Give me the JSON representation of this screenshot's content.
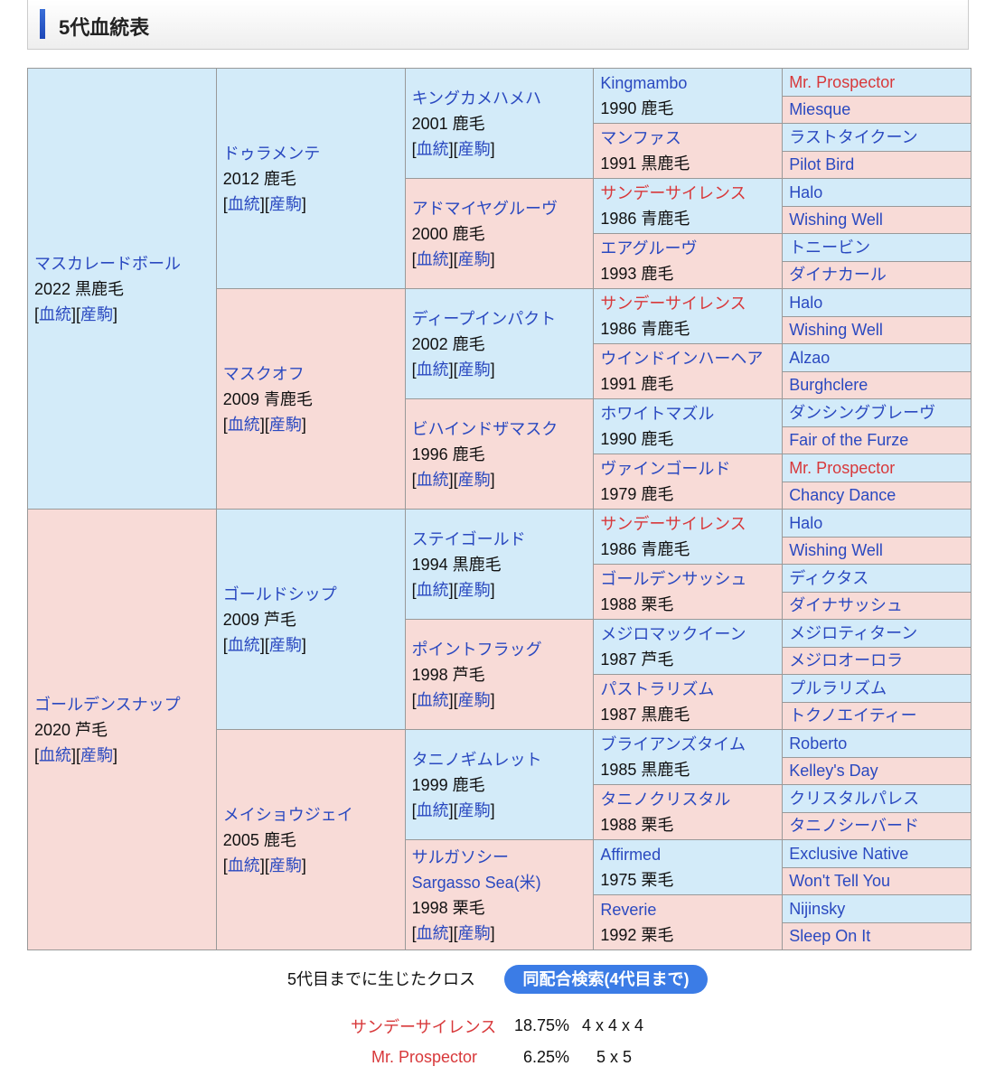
{
  "title": "5代血統表",
  "link_pedigree": "血統",
  "link_offspring": "産駒",
  "colors": {
    "sire_bg": "#d3ebf9",
    "dam_bg": "#f8dbd7",
    "link": "#2a49c0",
    "cross": "#d8383a",
    "button": "#3b7ce6"
  },
  "pedigree": {
    "gen1": [
      {
        "name": "マスカレードボール",
        "info": "2022 黒鹿毛"
      },
      {
        "name": "ゴールデンスナップ",
        "info": "2020 芦毛"
      }
    ],
    "gen2": [
      {
        "name": "ドゥラメンテ",
        "info": "2012 鹿毛"
      },
      {
        "name": "マスクオフ",
        "info": "2009 青鹿毛"
      },
      {
        "name": "ゴールドシップ",
        "info": "2009 芦毛"
      },
      {
        "name": "メイショウジェイ",
        "info": "2005 鹿毛"
      }
    ],
    "gen3": [
      {
        "name": "キングカメハメハ",
        "info": "2001 鹿毛"
      },
      {
        "name": "アドマイヤグルーヴ",
        "info": "2000 鹿毛"
      },
      {
        "name": "ディープインパクト",
        "info": "2002 鹿毛"
      },
      {
        "name": "ビハインドザマスク",
        "info": "1996 鹿毛"
      },
      {
        "name": "ステイゴールド",
        "info": "1994 黒鹿毛"
      },
      {
        "name": "ポイントフラッグ",
        "info": "1998 芦毛"
      },
      {
        "name": "タニノギムレット",
        "info": "1999 鹿毛"
      },
      {
        "name": "サルガソシー",
        "alt": "Sargasso Sea(米)",
        "info": "1998 栗毛"
      }
    ],
    "gen4": [
      {
        "name": "Kingmambo",
        "info": "1990 鹿毛"
      },
      {
        "name": "マンファス",
        "info": "1991 黒鹿毛"
      },
      {
        "name": "サンデーサイレンス",
        "info": "1986 青鹿毛",
        "cross": true
      },
      {
        "name": "エアグルーヴ",
        "info": "1993 鹿毛"
      },
      {
        "name": "サンデーサイレンス",
        "info": "1986 青鹿毛",
        "cross": true
      },
      {
        "name": "ウインドインハーヘア",
        "info": "1991 鹿毛"
      },
      {
        "name": "ホワイトマズル",
        "info": "1990 鹿毛"
      },
      {
        "name": "ヴァインゴールド",
        "info": "1979 鹿毛"
      },
      {
        "name": "サンデーサイレンス",
        "info": "1986 青鹿毛",
        "cross": true
      },
      {
        "name": "ゴールデンサッシュ",
        "info": "1988 栗毛"
      },
      {
        "name": "メジロマックイーン",
        "info": "1987 芦毛"
      },
      {
        "name": "パストラリズム",
        "info": "1987 黒鹿毛"
      },
      {
        "name": "ブライアンズタイム",
        "info": "1985 黒鹿毛"
      },
      {
        "name": "タニノクリスタル",
        "info": "1988 栗毛"
      },
      {
        "name": "Affirmed",
        "info": "1975 栗毛"
      },
      {
        "name": "Reverie",
        "info": "1992 栗毛"
      }
    ],
    "gen5": [
      {
        "name": "Mr. Prospector",
        "cross": true
      },
      {
        "name": "Miesque"
      },
      {
        "name": "ラストタイクーン"
      },
      {
        "name": "Pilot Bird"
      },
      {
        "name": "Halo"
      },
      {
        "name": "Wishing Well"
      },
      {
        "name": "トニービン"
      },
      {
        "name": "ダイナカール"
      },
      {
        "name": "Halo"
      },
      {
        "name": "Wishing Well"
      },
      {
        "name": "Alzao"
      },
      {
        "name": "Burghclere"
      },
      {
        "name": "ダンシングブレーヴ"
      },
      {
        "name": "Fair of the Furze"
      },
      {
        "name": "Mr. Prospector",
        "cross": true
      },
      {
        "name": "Chancy Dance"
      },
      {
        "name": "Halo"
      },
      {
        "name": "Wishing Well"
      },
      {
        "name": "ディクタス"
      },
      {
        "name": "ダイナサッシュ"
      },
      {
        "name": "メジロティターン"
      },
      {
        "name": "メジロオーロラ"
      },
      {
        "name": "プルラリズム"
      },
      {
        "name": "トクノエイティー"
      },
      {
        "name": "Roberto"
      },
      {
        "name": "Kelley's Day"
      },
      {
        "name": "クリスタルパレス"
      },
      {
        "name": "タニノシーバード"
      },
      {
        "name": "Exclusive Native"
      },
      {
        "name": "Won't Tell You"
      },
      {
        "name": "Nijinsky"
      },
      {
        "name": "Sleep On It"
      }
    ]
  },
  "crosses": {
    "label": "5代目までに生じたクロス",
    "button": "同配合検索(4代目まで)",
    "items": [
      {
        "name": "サンデーサイレンス",
        "percent": "18.75%",
        "pattern": "4 x 4 x 4"
      },
      {
        "name": "Mr. Prospector",
        "percent": "6.25%",
        "pattern": "5 x 5"
      }
    ]
  }
}
